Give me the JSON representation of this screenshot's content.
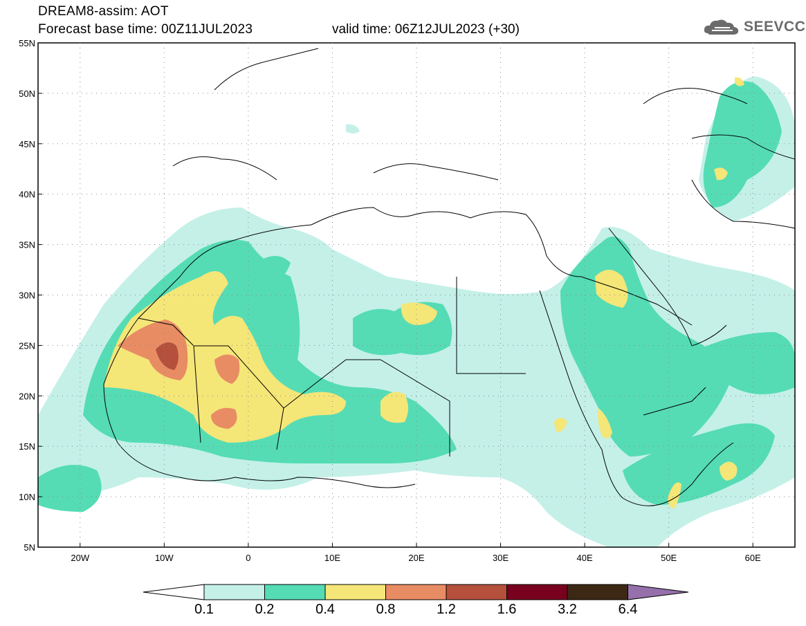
{
  "header": {
    "title_line1": "DREAM8-assim: AOT",
    "title_line2a": "Forecast base time: 00Z11JUL2023",
    "title_line2b": "valid time: 06Z12JUL2023 (+30)",
    "logo_text": "SEEVCCC"
  },
  "map": {
    "lat_labels": [
      "55N",
      "50N",
      "45N",
      "40N",
      "35N",
      "30N",
      "25N",
      "20N",
      "15N",
      "10N",
      "5N"
    ],
    "lon_labels": [
      "20W",
      "10W",
      "0",
      "10E",
      "20E",
      "30E",
      "40E",
      "50E",
      "60E"
    ],
    "extent": {
      "lon_min": -25,
      "lon_max": 65,
      "lat_min": 5,
      "lat_max": 55
    }
  },
  "colorbar": {
    "levels": [
      "0.1",
      "0.2",
      "0.4",
      "0.8",
      "1.2",
      "1.6",
      "3.2",
      "6.4"
    ],
    "colors": [
      "#c4f0e8",
      "#55dcb4",
      "#f5e678",
      "#e88c64",
      "#b4503c",
      "#78001e",
      "#3c2814",
      "#9670aa"
    ],
    "below_color": "#ffffff"
  }
}
